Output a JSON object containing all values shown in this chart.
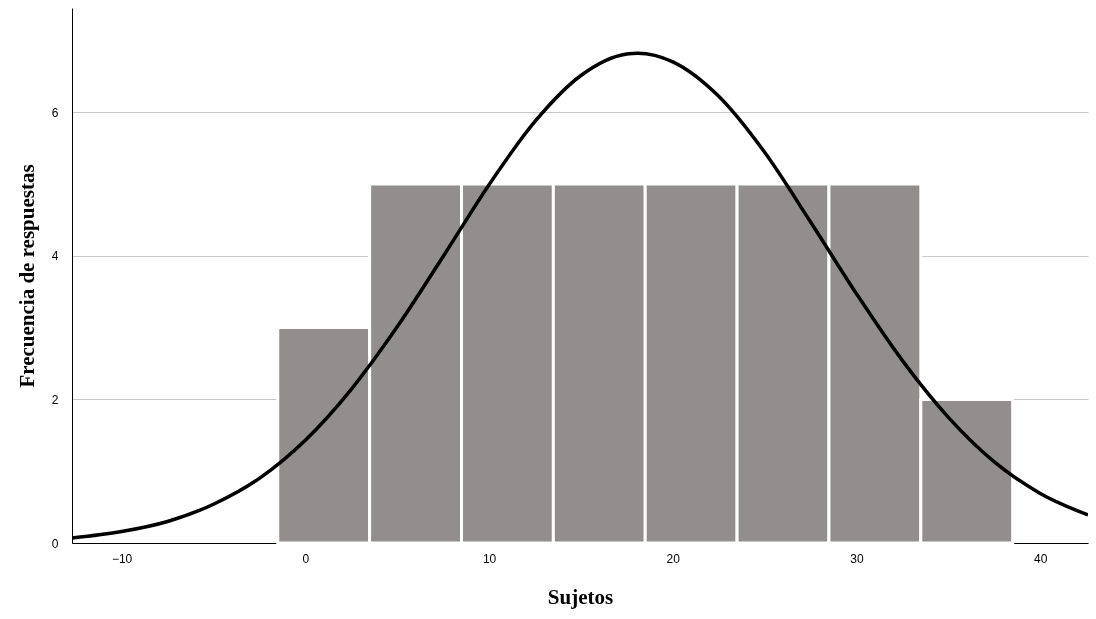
{
  "chart_data": {
    "type": "histogram",
    "xlabel": "Sujetos",
    "ylabel": "Frecuencia de respuestas",
    "bins": [
      -1.5,
      3.5,
      8.5,
      13.5,
      18.5,
      23.5,
      28.5,
      33.5,
      38.5
    ],
    "values": [
      3,
      5,
      5,
      5,
      5,
      5,
      5,
      2
    ],
    "color": "#918e8d",
    "series": [
      {
        "type": "line",
        "color": "#000000",
        "x": [
          -12.7,
          -10,
          -7.5,
          -5,
          -2.5,
          0,
          2.5,
          5,
          7.5,
          10,
          12.5,
          15,
          17.5,
          18.1,
          20,
          22.5,
          25,
          27.5,
          30,
          32.5,
          35,
          37.5,
          40,
          42.6
        ],
        "values": [
          0.07,
          0.16,
          0.3,
          0.54,
          0.9,
          1.43,
          2.14,
          3.01,
          3.99,
          4.99,
          5.87,
          6.51,
          6.81,
          6.82,
          6.7,
          6.22,
          5.44,
          4.47,
          3.47,
          2.54,
          1.75,
          1.13,
          0.69,
          0.39
        ]
      }
    ],
    "xlim": [
      -12.7,
      42.6
    ],
    "ylim": [
      0,
      7.45
    ],
    "xticks": [
      -10,
      0,
      10,
      20,
      30,
      40
    ],
    "yticks": [
      0,
      2,
      4,
      6
    ],
    "grid": "y",
    "line_style": "solid",
    "marker": "none"
  }
}
